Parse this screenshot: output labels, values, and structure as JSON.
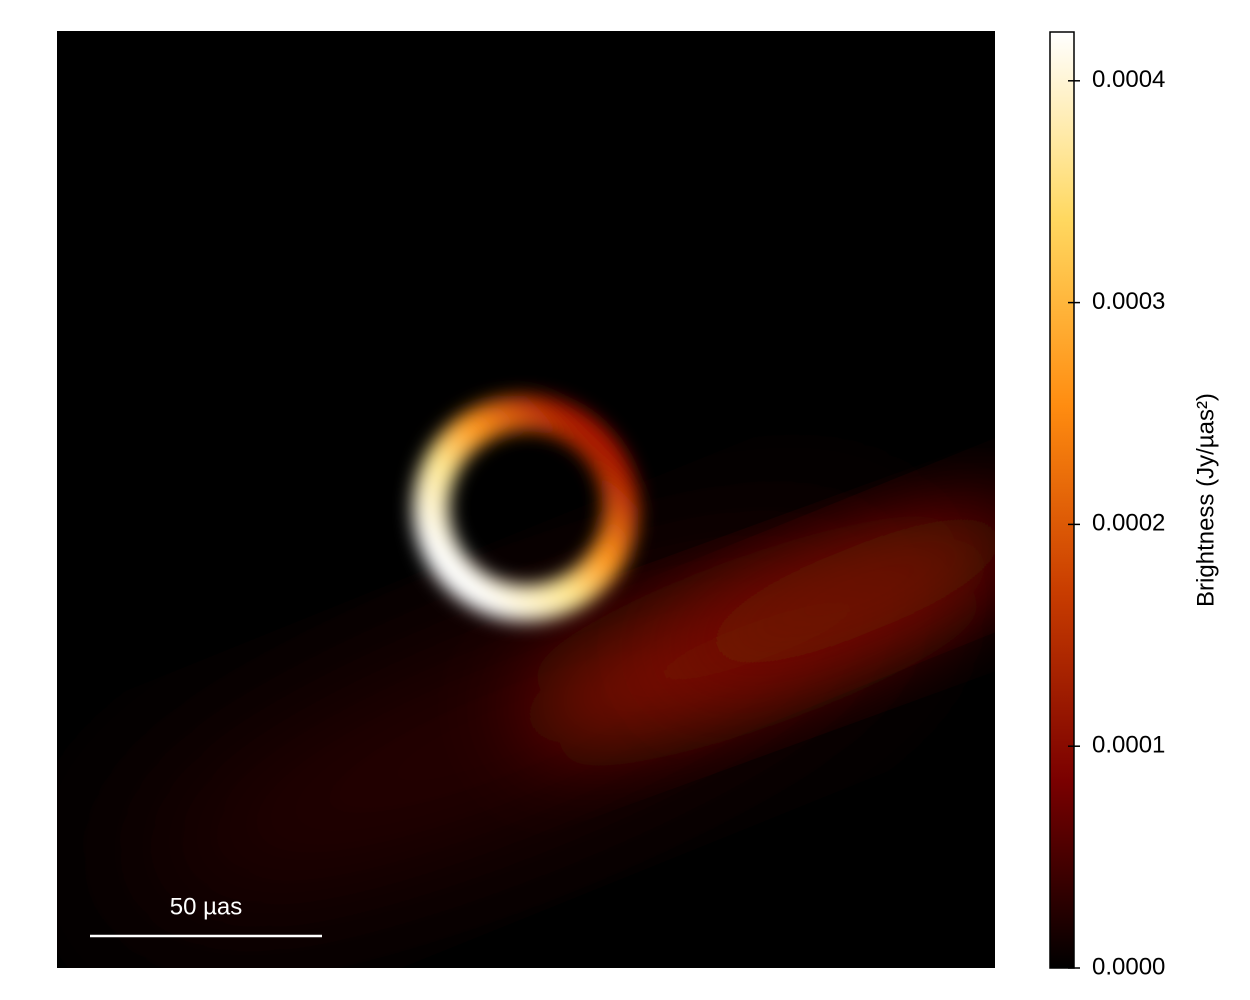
{
  "chart_data": {
    "type": "image",
    "colorbar": {
      "label": "Brightness (Jy/µas²)",
      "clim": [
        0,
        0.000422
      ],
      "ticks": [
        {
          "value": 0,
          "label": "0.0000"
        },
        0.0001,
        0.0002,
        0.0003,
        0.0004
      ],
      "colormap": [
        "#000000",
        "#7a0000",
        "#c83c00",
        "#ff8c10",
        "#ffd860",
        "#ffffff"
      ]
    },
    "scale_bar": {
      "label": "50 µas"
    }
  }
}
